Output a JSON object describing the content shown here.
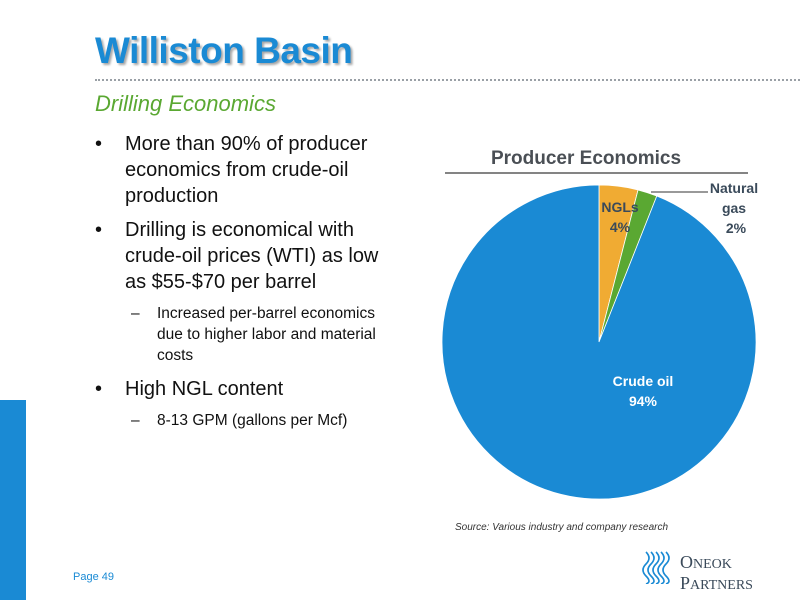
{
  "header": {
    "title": "Williston Basin",
    "subtitle": "Drilling Economics"
  },
  "bullets": [
    {
      "text": "More than 90% of producer economics from crude-oil production",
      "lines": [
        "More than 90% of producer",
        "economics from crude-oil",
        "production"
      ]
    },
    {
      "text": "Drilling is economical with crude-oil prices (WTI) as low as $55-$70 per barrel",
      "lines": [
        "Drilling is economical with",
        "crude-oil prices (WTI) as low",
        "as $55-$70 per barrel"
      ],
      "sub": {
        "lines": [
          "Increased per-barrel economics",
          "due to higher labor and material",
          "costs"
        ]
      }
    },
    {
      "text": "High NGL content",
      "lines": [
        "High NGL content"
      ],
      "sub": {
        "lines": [
          "8-13 GPM (gallons per Mcf)"
        ]
      }
    }
  ],
  "bullet_symbol": "•",
  "dash_symbol": "–",
  "chart_data": {
    "type": "pie",
    "title": "Producer Economics",
    "slices": [
      {
        "label": "NGLs",
        "value": 4,
        "value_label": "4%",
        "color": "#f0ab33"
      },
      {
        "label": "Natural gas",
        "value": 2,
        "value_label": "2%",
        "color": "#5aa832"
      },
      {
        "label": "Crude oil",
        "value": 94,
        "value_label": "94%",
        "color": "#1a8ad4"
      }
    ],
    "start_angle_deg": 0,
    "direction": "clockwise"
  },
  "footer": {
    "source": "Source: Various industry and company research",
    "page": "Page 49",
    "logo_line1_cap": "O",
    "logo_line1_rest": "NEOK",
    "logo_line2_cap": "P",
    "logo_line2_rest": "ARTNERS"
  },
  "colors": {
    "brand_blue": "#1a8ad4",
    "brand_green": "#5aa832"
  }
}
